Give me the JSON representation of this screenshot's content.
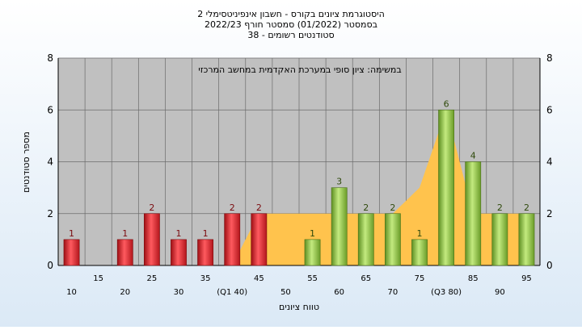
{
  "chart_data": {
    "type": "bar",
    "title_lines": [
      "היסטוגרמת ציונים בקורס - חשבון אינפיניטסימלי 2",
      "בסמסטר  (01/2022)  סמסטר חורף  2022/23",
      "סטודנטים רשומים - 38"
    ],
    "annotation": "במשימה: ציון סופי במערכת האקדמית במחשב המרכזי",
    "xlabel": "טווח ציונים",
    "ylabel": "מספר סטודנטים",
    "ylim": [
      0,
      8
    ],
    "yticks": [
      0,
      2,
      4,
      6,
      8
    ],
    "grid": true,
    "categories": [
      {
        "label": "10",
        "value": 1,
        "group": "red"
      },
      {
        "label": "15",
        "value": 0,
        "group": "red"
      },
      {
        "label": "20",
        "value": 1,
        "group": "red"
      },
      {
        "label": "25",
        "value": 2,
        "group": "red"
      },
      {
        "label": "30",
        "value": 1,
        "group": "red"
      },
      {
        "label": "35",
        "value": 1,
        "group": "red"
      },
      {
        "label": "(Q1 40)",
        "value": 2,
        "group": "red"
      },
      {
        "label": "45",
        "value": 2,
        "group": "red"
      },
      {
        "label": "50",
        "value": 0,
        "group": "green"
      },
      {
        "label": "55",
        "value": 1,
        "group": "green"
      },
      {
        "label": "60",
        "value": 3,
        "group": "green"
      },
      {
        "label": "65",
        "value": 2,
        "group": "green"
      },
      {
        "label": "70",
        "value": 2,
        "group": "green"
      },
      {
        "label": "75",
        "value": 1,
        "group": "green"
      },
      {
        "label": "(Q3 80)",
        "value": 6,
        "group": "green"
      },
      {
        "label": "85",
        "value": 4,
        "group": "green"
      },
      {
        "label": "90",
        "value": 2,
        "group": "green"
      },
      {
        "label": "95",
        "value": 2,
        "group": "green"
      }
    ],
    "area_series": [
      0,
      0,
      0,
      0,
      0,
      0,
      0,
      2,
      2,
      2,
      2,
      2,
      2,
      3,
      6,
      2,
      2,
      2
    ],
    "colors": {
      "red": "#e8242c",
      "green": "#8cc63f",
      "area": "#ffc34d",
      "plot_bg": "#c0c0c0",
      "grid": "#6b6b6b"
    }
  }
}
